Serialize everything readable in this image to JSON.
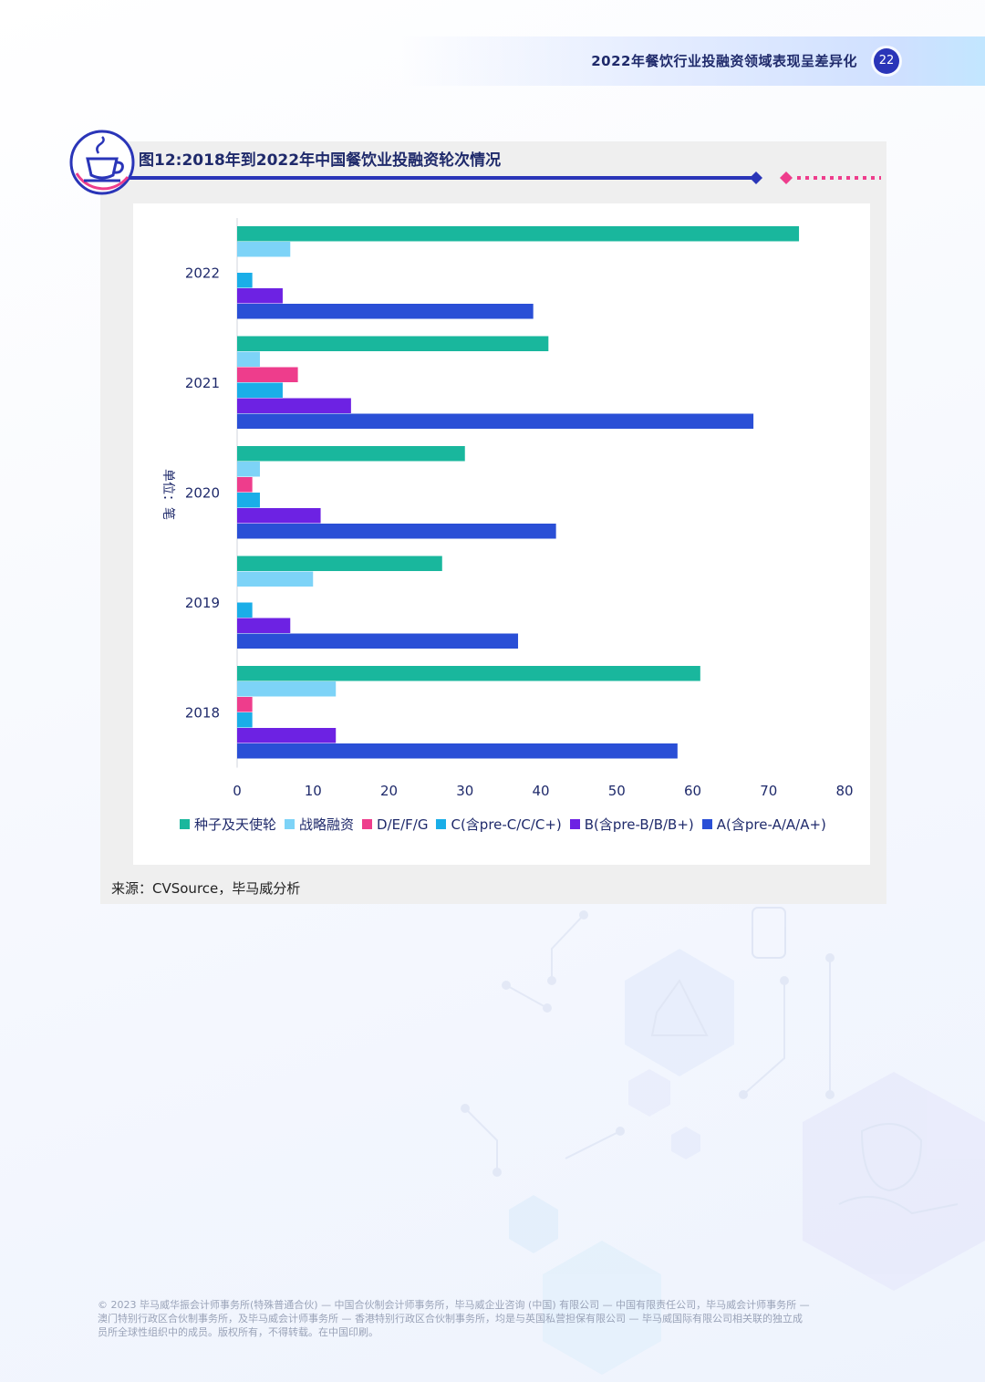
{
  "header": {
    "title": "2022年餐饮行业投融资领域表现呈差异化",
    "page_number": "22"
  },
  "figure": {
    "title": "图12:2018年到2022年中国餐饮业投融资轮次情况",
    "icon": "teacup-icon"
  },
  "source": "来源：CVSource，毕马威分析",
  "footer": {
    "line1": "© 2023 毕马威华振会计师事务所(特殊普通合伙) — 中国合伙制会计师事务所，毕马威企业咨询 (中国) 有限公司 — 中国有限责任公司，毕马威会计师事务所 —",
    "line2": "澳门特别行政区合伙制事务所，及毕马威会计师事务所 — 香港特别行政区合伙制事务所，均是与英国私营担保有限公司 — 毕马威国际有限公司相关联的独立成",
    "line3": "员所全球性组织中的成员。版权所有，不得转载。在中国印刷。"
  },
  "chart_data": {
    "type": "bar",
    "orientation": "horizontal",
    "title": "图12:2018年到2022年中国餐饮业投融资轮次情况",
    "ylabel": "单位：笔",
    "xlabel": "",
    "categories": [
      "2022",
      "2021",
      "2020",
      "2019",
      "2018"
    ],
    "xlim": [
      0,
      80
    ],
    "xticks": [
      "0",
      "10",
      "20",
      "30",
      "40",
      "50",
      "60",
      "70",
      "80"
    ],
    "legend_position": "bottom",
    "grid": false,
    "series": [
      {
        "name": "种子及天使轮",
        "color": "#19b79d",
        "values": [
          74,
          41,
          30,
          27,
          61
        ]
      },
      {
        "name": "战略融资",
        "color": "#7dd3f7",
        "values": [
          7,
          3,
          3,
          10,
          13
        ]
      },
      {
        "name": "D/E/F/G",
        "color": "#ee3d8c",
        "values": [
          0,
          8,
          2,
          0,
          2
        ]
      },
      {
        "name": "C(含pre-C/C/C+)",
        "color": "#1aaee8",
        "values": [
          2,
          6,
          3,
          2,
          2
        ]
      },
      {
        "name": "B(含pre-B/B/B+)",
        "color": "#6d22e3",
        "values": [
          6,
          15,
          11,
          7,
          13
        ]
      },
      {
        "name": "A(含pre-A/A/A+)",
        "color": "#2a4fd6",
        "values": [
          39,
          68,
          42,
          37,
          58
        ]
      }
    ]
  }
}
